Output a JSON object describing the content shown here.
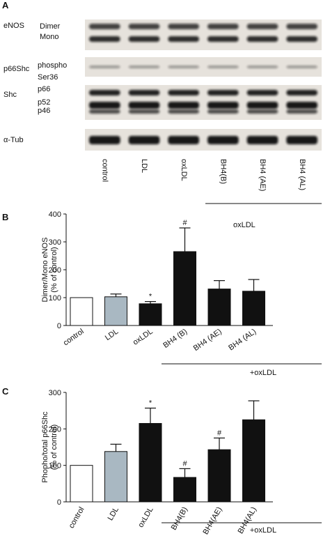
{
  "blot": {
    "panel_label": "A",
    "rows": [
      {
        "name": "eNOS",
        "bands": [
          "Dimer",
          "Mono"
        ]
      },
      {
        "name": "p66Shc",
        "bands": [
          "phospho",
          "Ser36"
        ]
      },
      {
        "name": "Shc",
        "bands": [
          "p66",
          "p52",
          "p46"
        ]
      },
      {
        "name": "α-Tub",
        "bands": []
      }
    ],
    "lanes": [
      "control",
      "LDL",
      "oxLDL",
      "BH4(B)",
      "BH4 (AE)",
      "BH4 (AL)"
    ]
  },
  "chart_data": [
    {
      "type": "bar",
      "panel_label": "B",
      "ylabel": [
        "Dimer/Mono eNOS",
        "(% of control)"
      ],
      "categories": [
        "control",
        "LDL",
        "oxLDL",
        "BH4 (B)",
        "BH4 (AE)",
        "BH4 (AL)"
      ],
      "values": [
        100,
        103,
        78,
        265,
        131,
        123
      ],
      "errors": [
        0,
        10,
        8,
        85,
        30,
        42
      ],
      "colors": [
        "#ffffff",
        "#a9b8c2",
        "#111111",
        "#111111",
        "#111111",
        "#111111"
      ],
      "ylim": [
        0,
        400
      ],
      "yticks": [
        0,
        100,
        200,
        300,
        400
      ],
      "annotations": [
        {
          "text": "*",
          "category": "oxLDL"
        },
        {
          "text": "#",
          "category": "BH4 (B)"
        }
      ],
      "note": "oxLDL",
      "group_label": "+oxLDL"
    },
    {
      "type": "bar",
      "panel_label": "C",
      "ylabel": [
        "Phopho/total p66Shc",
        "(% of control)"
      ],
      "categories": [
        "control",
        "LDL",
        "oxLDL",
        "BH4(B)",
        "BH4(AE)",
        "BH4(AL)"
      ],
      "values": [
        100,
        138,
        215,
        67,
        143,
        225
      ],
      "errors": [
        0,
        20,
        42,
        24,
        32,
        52
      ],
      "colors": [
        "#ffffff",
        "#a9b8c2",
        "#111111",
        "#111111",
        "#111111",
        "#111111"
      ],
      "ylim": [
        0,
        300
      ],
      "yticks": [
        0,
        100,
        200,
        300
      ],
      "annotations": [
        {
          "text": "*",
          "category": "oxLDL"
        },
        {
          "text": "#",
          "category": "BH4(B)"
        },
        {
          "text": "#",
          "category": "BH4(AE)"
        }
      ],
      "group_label": "+oxLDL"
    }
  ]
}
